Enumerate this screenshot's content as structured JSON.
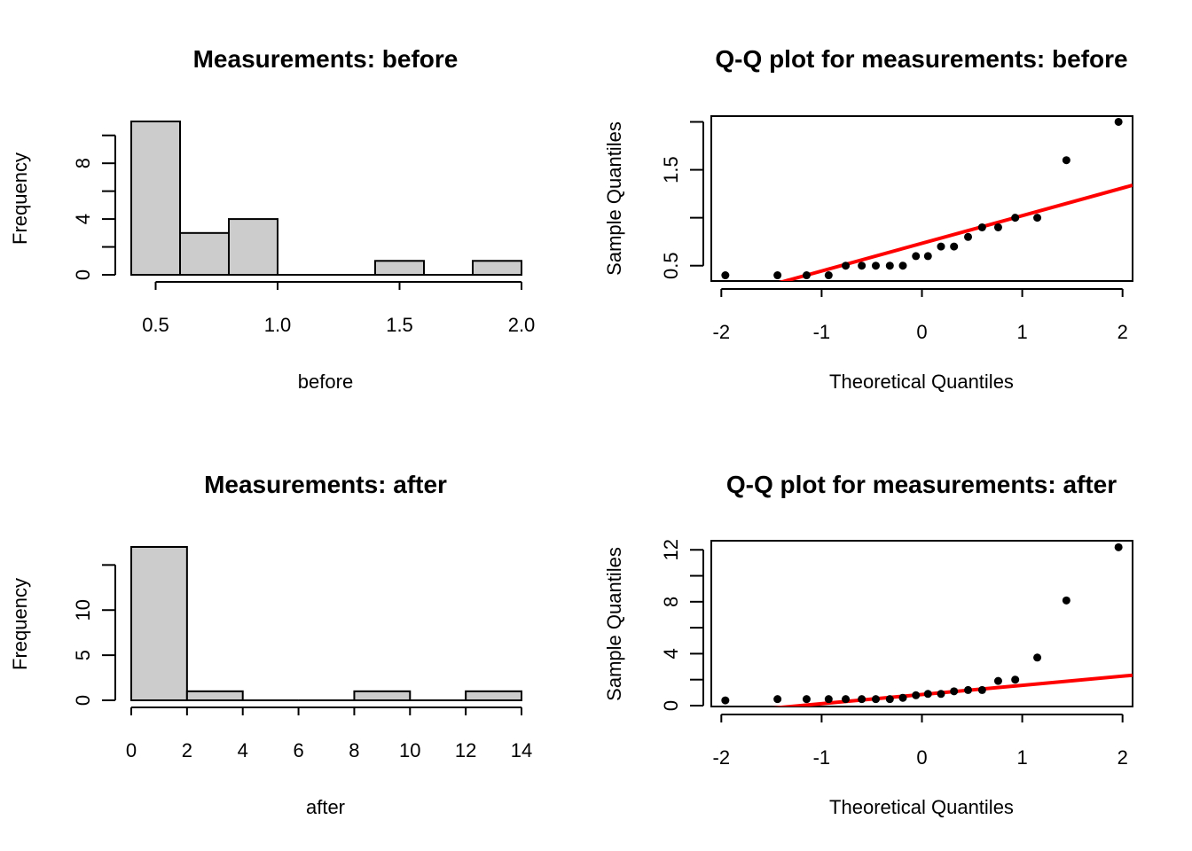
{
  "colors": {
    "bar_fill": "#cccccc",
    "line": "#ff0000",
    "points": "#000000"
  },
  "chart_data": [
    {
      "type": "histogram",
      "title": "Measurements: before",
      "xlabel": "before",
      "ylabel": "Frequency",
      "bins": [
        {
          "from": 0.4,
          "to": 0.6,
          "count": 11
        },
        {
          "from": 0.6,
          "to": 0.8,
          "count": 3
        },
        {
          "from": 0.8,
          "to": 1.0,
          "count": 4
        },
        {
          "from": 1.0,
          "to": 1.2,
          "count": 0
        },
        {
          "from": 1.2,
          "to": 1.4,
          "count": 0
        },
        {
          "from": 1.4,
          "to": 1.6,
          "count": 1
        },
        {
          "from": 1.6,
          "to": 1.8,
          "count": 0
        },
        {
          "from": 1.8,
          "to": 2.0,
          "count": 1
        }
      ],
      "xticks": [
        0.5,
        1.0,
        1.5,
        2.0
      ],
      "xtick_labels": [
        "0.5",
        "1.0",
        "1.5",
        "2.0"
      ],
      "yticks": [
        0,
        2,
        4,
        6,
        8,
        10
      ],
      "ytick_labels": [
        "0",
        "",
        "4",
        "",
        "8",
        ""
      ],
      "xlim": [
        0.4,
        2.0
      ],
      "ylim": [
        0,
        11
      ]
    },
    {
      "type": "scatter",
      "title": "Q-Q plot for measurements: before",
      "xlabel": "Theoretical Quantiles",
      "ylabel": "Sample Quantiles",
      "x": [
        -1.96,
        -1.44,
        -1.15,
        -0.93,
        -0.76,
        -0.6,
        -0.46,
        -0.32,
        -0.19,
        -0.06,
        0.06,
        0.19,
        0.32,
        0.46,
        0.6,
        0.76,
        0.93,
        1.15,
        1.44,
        1.96
      ],
      "y": [
        0.4,
        0.4,
        0.4,
        0.4,
        0.5,
        0.5,
        0.5,
        0.5,
        0.5,
        0.6,
        0.6,
        0.7,
        0.7,
        0.8,
        0.9,
        0.9,
        1.0,
        1.0,
        1.6,
        2.0
      ],
      "ref_line": {
        "x": [
          -2.1,
          2.1
        ],
        "y": [
          0.127,
          1.339
        ]
      },
      "xticks": [
        -2,
        -1,
        0,
        1,
        2
      ],
      "xtick_labels": [
        "-2",
        "-1",
        "0",
        "1",
        "2"
      ],
      "yticks": [
        0.5,
        1.0,
        1.5,
        2.0
      ],
      "ytick_labels": [
        "0.5",
        "",
        "1.5",
        ""
      ],
      "xlim": [
        -2.1,
        2.1
      ],
      "ylim": [
        0.34,
        2.06
      ]
    },
    {
      "type": "histogram",
      "title": "Measurements: after",
      "xlabel": "after",
      "ylabel": "Frequency",
      "bins": [
        {
          "from": 0,
          "to": 2,
          "count": 17
        },
        {
          "from": 2,
          "to": 4,
          "count": 1
        },
        {
          "from": 4,
          "to": 6,
          "count": 0
        },
        {
          "from": 6,
          "to": 8,
          "count": 0
        },
        {
          "from": 8,
          "to": 10,
          "count": 1
        },
        {
          "from": 10,
          "to": 12,
          "count": 0
        },
        {
          "from": 12,
          "to": 14,
          "count": 1
        }
      ],
      "xticks": [
        0,
        2,
        4,
        6,
        8,
        10,
        12,
        14
      ],
      "xtick_labels": [
        "0",
        "2",
        "4",
        "6",
        "8",
        "10",
        "12",
        "14"
      ],
      "yticks": [
        0,
        5,
        10,
        15
      ],
      "ytick_labels": [
        "0",
        "5",
        "10",
        ""
      ],
      "xlim": [
        0,
        14
      ],
      "ylim": [
        0,
        17
      ]
    },
    {
      "type": "scatter",
      "title": "Q-Q plot for measurements: after",
      "xlabel": "Theoretical Quantiles",
      "ylabel": "Sample Quantiles",
      "x": [
        -1.96,
        -1.44,
        -1.15,
        -0.93,
        -0.76,
        -0.6,
        -0.46,
        -0.32,
        -0.19,
        -0.06,
        0.06,
        0.19,
        0.32,
        0.46,
        0.6,
        0.76,
        0.93,
        1.15,
        1.44,
        1.96
      ],
      "y": [
        0.4,
        0.5,
        0.5,
        0.5,
        0.5,
        0.5,
        0.5,
        0.5,
        0.6,
        0.8,
        0.9,
        0.9,
        1.1,
        1.2,
        1.2,
        1.9,
        2.0,
        3.7,
        8.1,
        12.2
      ],
      "ref_line": {
        "x": [
          -2.1,
          2.1
        ],
        "y": [
          -0.63,
          2.34
        ]
      },
      "xticks": [
        -2,
        -1,
        0,
        1,
        2
      ],
      "xtick_labels": [
        "-2",
        "-1",
        "0",
        "1",
        "2"
      ],
      "yticks": [
        0,
        2,
        4,
        6,
        8,
        10,
        12
      ],
      "ytick_labels": [
        "0",
        "",
        "4",
        "",
        "8",
        "",
        "12"
      ],
      "xlim": [
        -2.1,
        2.1
      ],
      "ylim": [
        -0.07,
        12.7
      ]
    }
  ]
}
